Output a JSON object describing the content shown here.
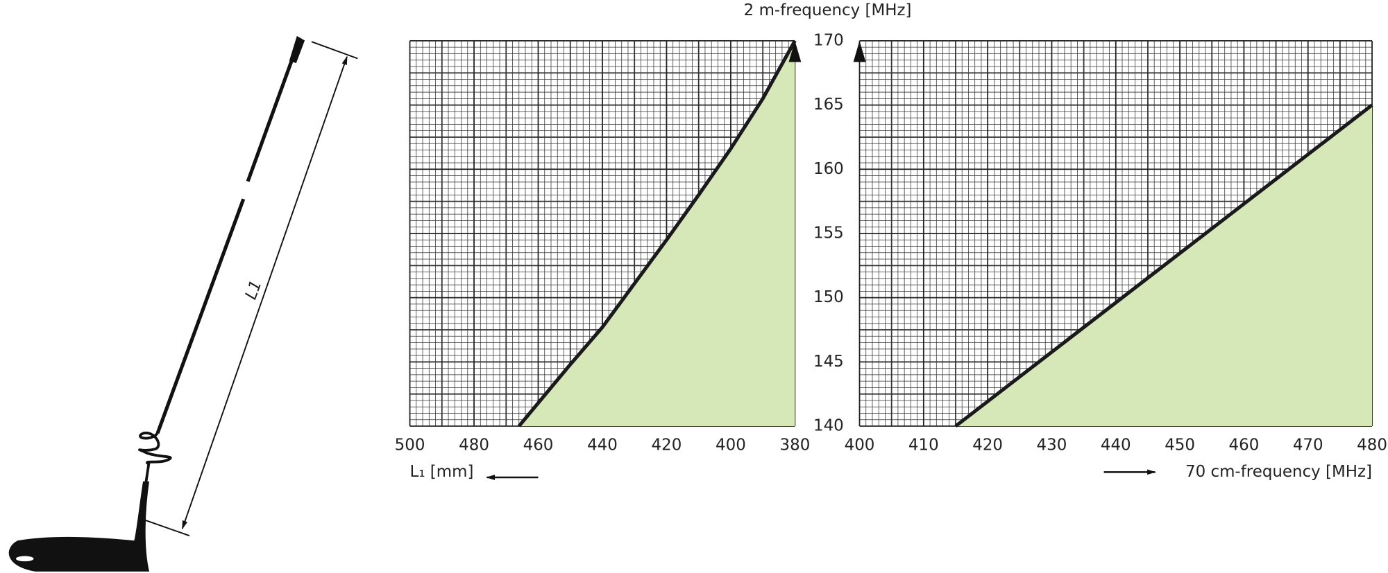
{
  "figure": {
    "dimension_label": "L1"
  },
  "chart_data": [
    {
      "type": "line",
      "y_label": "2 m-frequency [MHz]",
      "x_label": "L₁ [mm]",
      "xlim": [
        500,
        380
      ],
      "xticks": [
        500,
        480,
        460,
        440,
        420,
        400,
        380
      ],
      "ylim": [
        140,
        170
      ],
      "yticks": [
        140,
        145,
        150,
        155,
        160,
        165,
        170
      ],
      "grid": true,
      "fill_color": "#d6e8b8",
      "series": [
        {
          "color": "#1a1a1a",
          "x": [
            466,
            450,
            440,
            430,
            420,
            410,
            400,
            390,
            380
          ],
          "values": [
            140,
            144.8,
            147.7,
            151.1,
            154.5,
            158,
            161.6,
            165.5,
            170
          ]
        }
      ]
    },
    {
      "type": "line",
      "x_label": "70 cm-frequency [MHz]",
      "xlim": [
        400,
        480
      ],
      "xticks": [
        400,
        410,
        420,
        430,
        440,
        450,
        460,
        470,
        480
      ],
      "ylim": [
        140,
        170
      ],
      "yticks": [
        140,
        145,
        150,
        155,
        160,
        165,
        170
      ],
      "grid": true,
      "fill_color": "#d6e8b8",
      "series": [
        {
          "color": "#1a1a1a",
          "x": [
            415,
            480
          ],
          "values": [
            140,
            165
          ]
        }
      ]
    }
  ]
}
